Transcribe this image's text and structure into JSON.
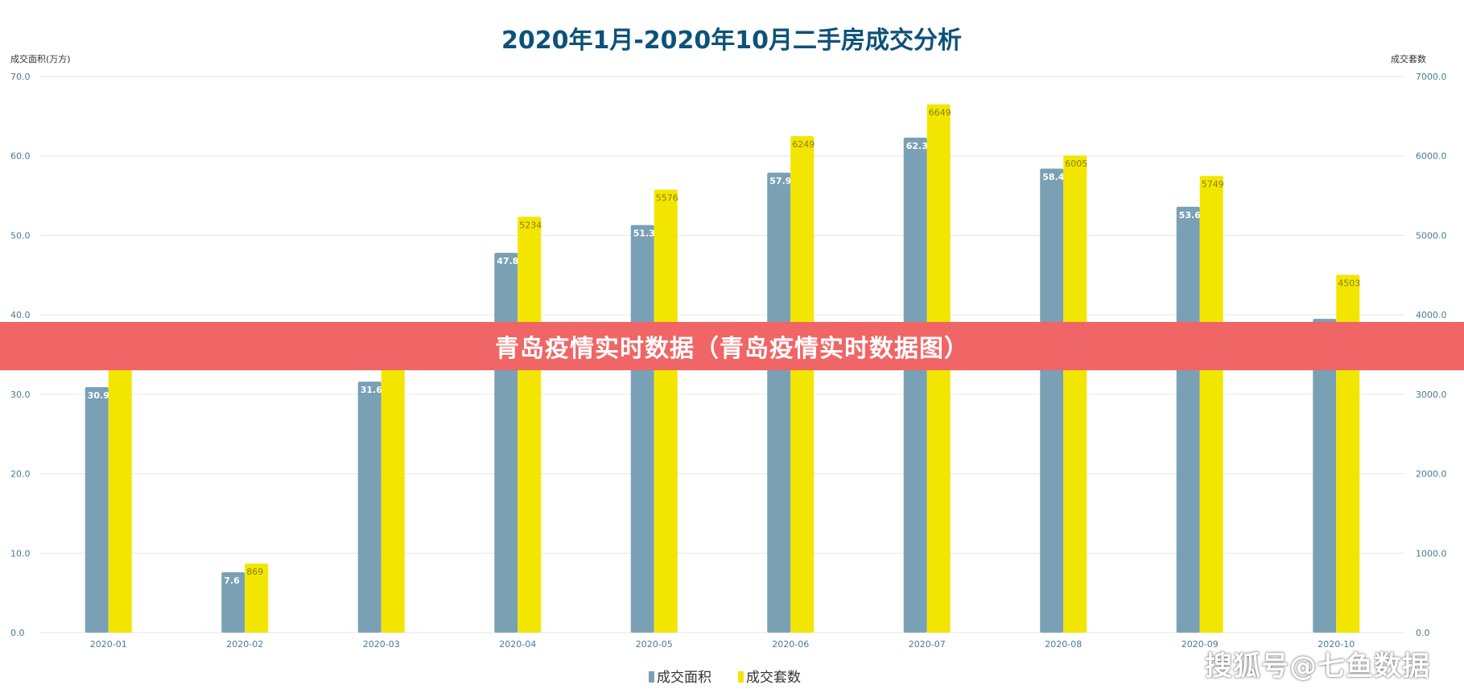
{
  "banner": {
    "text": "青岛疫情实时数据（青岛疫情实时数据图）"
  },
  "watermark": {
    "text": "搜狐号@七鱼数据"
  },
  "colors": {
    "area": "#7aa0b5",
    "count": "#f2e600",
    "title": "#0d5278",
    "grid": "#e6e6e6",
    "banner": "#f06565"
  },
  "chart_data": {
    "type": "bar",
    "title": "2020年1月-2020年10月二手房成交分析",
    "categories": [
      "2020-01",
      "2020-02",
      "2020-03",
      "2020-04",
      "2020-05",
      "2020-06",
      "2020-07",
      "2020-08",
      "2020-09",
      "2020-10"
    ],
    "left_axis": {
      "label": "成交面积(万方)",
      "ylim": [
        0,
        70
      ],
      "ticks": [
        "0.0",
        "10.0",
        "20.0",
        "30.0",
        "40.0",
        "50.0",
        "60.0",
        "70.0"
      ]
    },
    "right_axis": {
      "label": "成交套数",
      "ylim": [
        0,
        7000
      ],
      "ticks": [
        "0.0",
        "1000.0",
        "2000.0",
        "3000.0",
        "4000.0",
        "5000.0",
        "6000.0",
        "7000.0"
      ]
    },
    "grid": true,
    "legend_position": "bottom-center",
    "series": [
      {
        "name": "成交面积",
        "axis": "left",
        "values": [
          30.9,
          7.6,
          31.6,
          47.8,
          51.3,
          57.9,
          62.3,
          58.4,
          53.6,
          39.5
        ],
        "labels": [
          "30.9",
          "7.6",
          "31.6",
          "47.8",
          "51.3",
          "57.9",
          "62.3",
          "58.4",
          "53.6",
          ""
        ]
      },
      {
        "name": "成交套数",
        "axis": "right",
        "values": [
          3600,
          869,
          3600,
          5234,
          5576,
          6249,
          6649,
          6005,
          5749,
          4503
        ],
        "labels": [
          "",
          "869",
          "",
          "5234",
          "5576",
          "6249",
          "6649",
          "6005",
          "5749",
          "4503"
        ]
      }
    ]
  }
}
